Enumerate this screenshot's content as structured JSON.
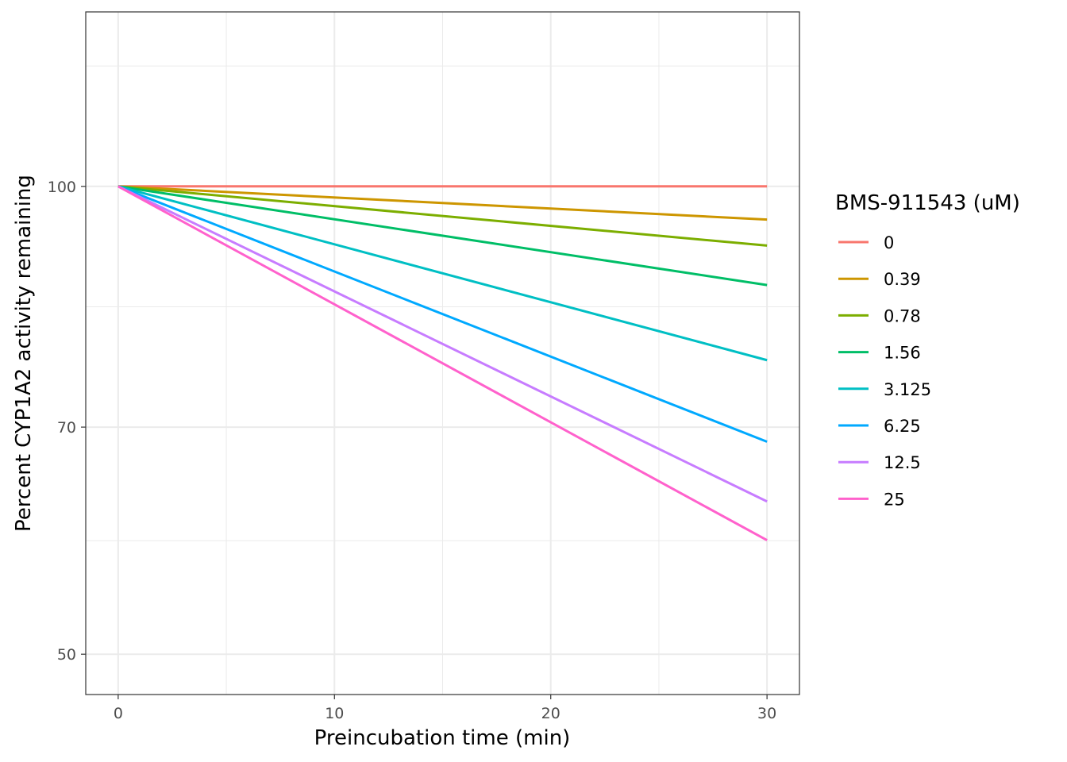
{
  "chart_data": {
    "type": "line",
    "title": "",
    "xlabel": "Preincubation time (min)",
    "ylabel": "Percent CYP1A2 activity remaining",
    "xlim": [
      -1.5,
      31.5
    ],
    "ylim_log": [
      47.1,
      129.5
    ],
    "y_scale": "log",
    "x_ticks": [
      0,
      10,
      20,
      30
    ],
    "y_ticks": [
      50,
      70,
      100
    ],
    "grid": true,
    "legend": {
      "title": "BMS-911543 (uM)",
      "placement": "right"
    },
    "x": [
      0,
      30
    ],
    "series": [
      {
        "name": "0",
        "color": "#F8766D",
        "values": [
          100,
          100
        ]
      },
      {
        "name": "0.39",
        "color": "#CD9600",
        "values": [
          100,
          95.2
        ]
      },
      {
        "name": "0.78",
        "color": "#7CAE00",
        "values": [
          100,
          91.6
        ]
      },
      {
        "name": "1.56",
        "color": "#00BE67",
        "values": [
          100,
          86.4
        ]
      },
      {
        "name": "3.125",
        "color": "#00BFC4",
        "values": [
          100,
          77.3
        ]
      },
      {
        "name": "6.25",
        "color": "#00A9FF",
        "values": [
          100,
          68.5
        ]
      },
      {
        "name": "12.5",
        "color": "#C77CFF",
        "values": [
          100,
          62.7
        ]
      },
      {
        "name": "25",
        "color": "#FF61CC",
        "values": [
          100,
          59.2
        ]
      }
    ]
  }
}
